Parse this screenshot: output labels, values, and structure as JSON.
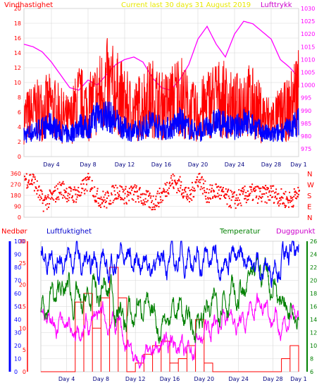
{
  "chart_data": [
    {
      "type": "line",
      "panel": "wind-pressure",
      "title": "Current last 30 days 31 August 2019",
      "left_label": "Vindhastighet",
      "right_label": "Lufttrykk",
      "x_ticks": [
        "Day 4",
        "Day 8",
        "Day 12",
        "Day 16",
        "Day 20",
        "Day 24",
        "Day 28",
        "Day 1"
      ],
      "y_left_ticks": [
        "0",
        "2",
        "4",
        "6",
        "8",
        "10",
        "12",
        "14",
        "16",
        "18",
        "20"
      ],
      "y_left_range": [
        0,
        20
      ],
      "y_right_ticks": [
        "975",
        "980",
        "985",
        "990",
        "995",
        "1000",
        "1005",
        "1010",
        "1015",
        "1020",
        "1025",
        "1030"
      ],
      "y_right_range": [
        972,
        1030
      ],
      "grid": true,
      "series": [
        {
          "role": "wind-gust",
          "color": "#ff0000",
          "x": [
            1,
            2,
            3,
            4,
            5,
            6,
            7,
            8,
            9,
            10,
            11,
            12,
            13,
            14,
            15,
            16,
            17,
            18,
            19,
            20,
            21,
            22,
            23,
            24,
            25,
            26,
            27,
            28,
            29,
            30,
            31
          ],
          "values": [
            6.5,
            7.5,
            8,
            8.5,
            7,
            6,
            9.5,
            8,
            10,
            12,
            11,
            9,
            7.5,
            9,
            10,
            8.5,
            9,
            11,
            8,
            7,
            9,
            10,
            9.5,
            8,
            10,
            9,
            7,
            6,
            7,
            8,
            12
          ]
        },
        {
          "role": "wind-mean",
          "color": "#0000ff",
          "x": [
            1,
            2,
            3,
            4,
            5,
            6,
            7,
            8,
            9,
            10,
            11,
            12,
            13,
            14,
            15,
            16,
            17,
            18,
            19,
            20,
            21,
            22,
            23,
            24,
            25,
            26,
            27,
            28,
            29,
            30,
            31
          ],
          "values": [
            3,
            3.5,
            4,
            4.5,
            3.5,
            3,
            4.5,
            4,
            6,
            6,
            5,
            4,
            3.5,
            4,
            5,
            4,
            4,
            5,
            4,
            3.5,
            4,
            5,
            4.5,
            4,
            5,
            4.5,
            3.5,
            3,
            3.5,
            4,
            5
          ]
        },
        {
          "role": "pressure",
          "color": "#ff00ff",
          "x": [
            1,
            2,
            3,
            4,
            5,
            6,
            7,
            8,
            9,
            10,
            11,
            12,
            13,
            14,
            15,
            16,
            17,
            18,
            19,
            20,
            21,
            22,
            23,
            24,
            25,
            26,
            27,
            28,
            29,
            30,
            31
          ],
          "values": [
            1016,
            1015,
            1013,
            1009,
            1004,
            999,
            998,
            1002,
            1000,
            1004,
            1008,
            1010,
            1011,
            1009,
            1003,
            999,
            998,
            1002,
            1008,
            1018,
            1023,
            1016,
            1011,
            1020,
            1025,
            1024,
            1021,
            1018,
            1010,
            1007,
            1003
          ]
        }
      ]
    },
    {
      "type": "scatter",
      "panel": "wind-direction",
      "y_ticks": [
        "0",
        "90",
        "180",
        "270",
        "360"
      ],
      "y_range": [
        0,
        360
      ],
      "right_labels": [
        "N",
        "W",
        "S",
        "E",
        "N"
      ],
      "series": [
        {
          "role": "wind-direction",
          "color": "#ff0000",
          "x": [
            1,
            2,
            3,
            4,
            5,
            6,
            7,
            8,
            9,
            10,
            11,
            12,
            13,
            14,
            15,
            16,
            17,
            18,
            19,
            20,
            21,
            22,
            23,
            24,
            25,
            26,
            27,
            28,
            29,
            30,
            31
          ],
          "values": [
            320,
            300,
            120,
            160,
            240,
            180,
            200,
            300,
            160,
            140,
            220,
            180,
            200,
            160,
            120,
            180,
            300,
            260,
            160,
            330,
            180,
            220,
            160,
            140,
            180,
            200,
            180,
            200,
            160,
            140,
            200
          ]
        }
      ]
    },
    {
      "type": "line",
      "panel": "humidity-temperature",
      "labels": {
        "precip": "Nedbør",
        "humidity": "Luftfuktighet",
        "temperature": "Temperatur",
        "dewpoint": "Duggpunkt"
      },
      "x_ticks": [
        "Day 4",
        "Day 8",
        "Day 12",
        "Day 16",
        "Day 20",
        "Day 24",
        "Day 28",
        "Day 1"
      ],
      "y_humidity_ticks": [
        "0",
        "10",
        "20",
        "30",
        "40",
        "50",
        "60",
        "70",
        "80",
        "90",
        "100"
      ],
      "y_humidity_range": [
        0,
        100
      ],
      "y_precip_ticks": [
        "0",
        "5",
        "10",
        "15",
        "20",
        "25",
        "30"
      ],
      "y_precip_range": [
        0,
        30
      ],
      "y_temp_ticks": [
        "6",
        "8",
        "10",
        "12",
        "14",
        "16",
        "18",
        "20",
        "22",
        "24",
        "26"
      ],
      "y_temp_range": [
        6,
        26
      ],
      "grid": true,
      "series": [
        {
          "role": "humidity",
          "color": "#0000ff",
          "x": [
            1,
            2,
            3,
            4,
            5,
            6,
            7,
            8,
            9,
            10,
            11,
            12,
            13,
            14,
            15,
            16,
            17,
            18,
            19,
            20,
            21,
            22,
            23,
            24,
            25,
            26,
            27,
            28,
            29,
            30,
            31
          ],
          "values": [
            88,
            90,
            86,
            84,
            88,
            82,
            80,
            86,
            76,
            90,
            88,
            84,
            86,
            80,
            88,
            84,
            86,
            90,
            82,
            86,
            88,
            84,
            90,
            86,
            88,
            82,
            78,
            80,
            86,
            90,
            92
          ]
        },
        {
          "role": "temperature",
          "color": "#008000",
          "x": [
            1,
            2,
            3,
            4,
            5,
            6,
            7,
            8,
            9,
            10,
            11,
            12,
            13,
            14,
            15,
            16,
            17,
            18,
            19,
            20,
            21,
            22,
            23,
            24,
            25,
            26,
            27,
            28,
            29,
            30,
            31
          ],
          "values": [
            16,
            17,
            18,
            19,
            17,
            16,
            18,
            18,
            19,
            15,
            14,
            15,
            17,
            14,
            13,
            15,
            16,
            14,
            13,
            15,
            16,
            17,
            18,
            17,
            19,
            21,
            22,
            19,
            17,
            16,
            16
          ]
        },
        {
          "role": "dewpoint",
          "color": "#ff00ff",
          "x": [
            1,
            2,
            3,
            4,
            5,
            6,
            7,
            8,
            9,
            10,
            11,
            12,
            13,
            14,
            15,
            16,
            17,
            18,
            19,
            20,
            21,
            22,
            23,
            24,
            25,
            26,
            27,
            28,
            29,
            30,
            31
          ],
          "values": [
            15,
            14,
            13,
            13,
            11,
            12,
            14,
            15,
            13,
            14,
            10,
            8,
            8,
            9,
            10,
            11,
            10,
            9,
            10,
            12,
            13,
            14,
            15,
            13,
            14,
            16,
            17,
            14,
            13,
            14,
            15
          ]
        },
        {
          "role": "precip",
          "color": "#ff0000",
          "x": [
            1,
            2,
            3,
            4,
            5,
            6,
            7,
            8,
            9,
            10,
            11,
            12,
            13,
            14,
            15,
            16,
            17,
            18,
            19,
            20,
            21,
            22,
            23,
            24,
            25,
            26,
            27,
            28,
            29,
            30,
            31
          ],
          "values": [
            0,
            0,
            0,
            0,
            16,
            18,
            10,
            17,
            24,
            17,
            0,
            2,
            4,
            6,
            7,
            2,
            3,
            6,
            12,
            2,
            0,
            0,
            0,
            0,
            0,
            0,
            0,
            0,
            3,
            6,
            0
          ]
        }
      ]
    }
  ]
}
